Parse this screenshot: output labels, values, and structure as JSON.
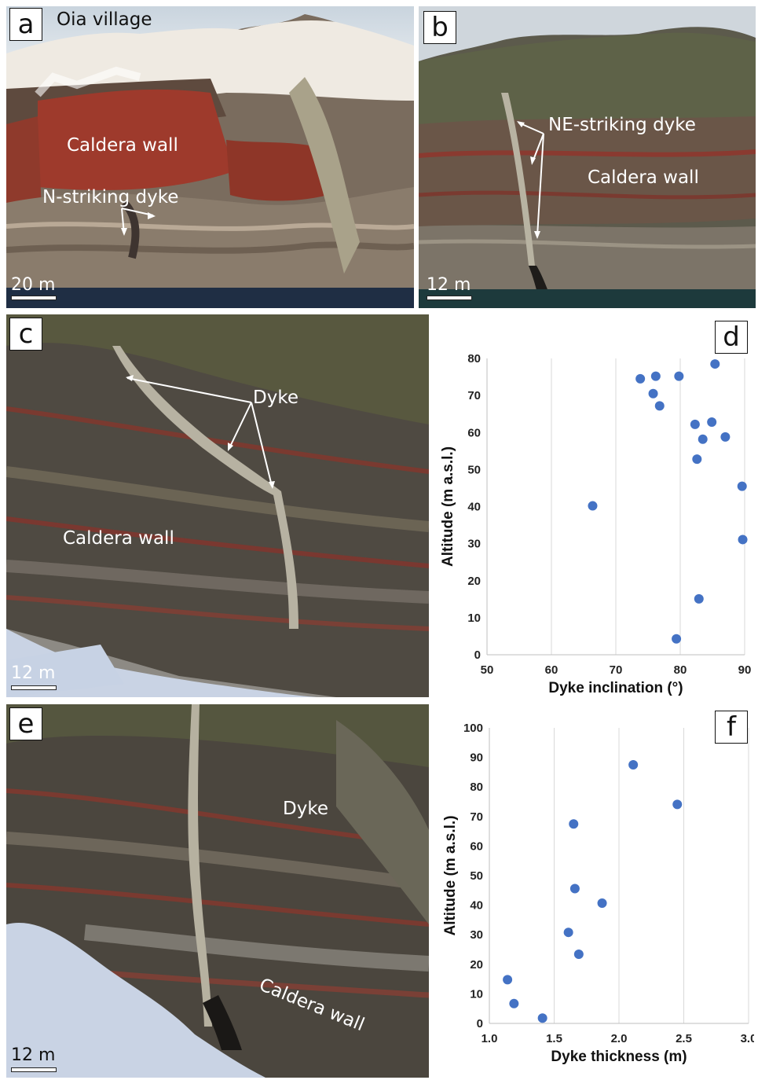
{
  "panels": {
    "a": {
      "letter": "a",
      "labels": {
        "village": "Oia village",
        "wall": "Caldera wall",
        "dyke": "N-striking dyke"
      },
      "scale": "20 m"
    },
    "b": {
      "letter": "b",
      "labels": {
        "dyke": "NE-striking dyke",
        "wall": "Caldera wall"
      },
      "scale": "12 m"
    },
    "c": {
      "letter": "c",
      "labels": {
        "dyke": "Dyke",
        "wall": "Caldera wall"
      },
      "scale": "12 m"
    },
    "d": {
      "letter": "d"
    },
    "e": {
      "letter": "e",
      "labels": {
        "dyke": "Dyke",
        "wall": "Caldera wall"
      },
      "scale": "12 m"
    },
    "f": {
      "letter": "f"
    }
  },
  "colors": {
    "marker": "#4472c4",
    "grid": "#d9d9d9"
  },
  "chart_data": [
    {
      "panel": "d",
      "type": "scatter",
      "xlabel": "Dyke inclination (°)",
      "ylabel": "Altitude (m a.s.l.)",
      "xlim": [
        50,
        90
      ],
      "ylim": [
        0,
        80
      ],
      "xticks": [
        50,
        60,
        70,
        80,
        90
      ],
      "yticks": [
        0,
        10,
        20,
        30,
        40,
        50,
        60,
        70,
        80
      ],
      "grid": "vertical",
      "points": [
        {
          "x": 66.4,
          "y": 40.2
        },
        {
          "x": 73.8,
          "y": 74.5
        },
        {
          "x": 76.2,
          "y": 75.2
        },
        {
          "x": 75.8,
          "y": 70.5
        },
        {
          "x": 76.8,
          "y": 67.2
        },
        {
          "x": 79.8,
          "y": 75.2
        },
        {
          "x": 85.4,
          "y": 78.5
        },
        {
          "x": 82.3,
          "y": 62.2
        },
        {
          "x": 84.9,
          "y": 62.8
        },
        {
          "x": 83.5,
          "y": 58.2
        },
        {
          "x": 87.0,
          "y": 58.8
        },
        {
          "x": 82.6,
          "y": 52.8
        },
        {
          "x": 89.6,
          "y": 45.5
        },
        {
          "x": 89.7,
          "y": 31.1
        },
        {
          "x": 82.9,
          "y": 15.1
        },
        {
          "x": 79.4,
          "y": 4.3
        }
      ]
    },
    {
      "panel": "f",
      "type": "scatter",
      "xlabel": "Dyke thickness (m)",
      "ylabel": "Altitude (m a.s.l.)",
      "xlim": [
        1.0,
        3.0
      ],
      "ylim": [
        0,
        100
      ],
      "xticks": [
        "1.0",
        "1.5",
        "2.0",
        "2.5",
        "3.0"
      ],
      "yticks": [
        0,
        10,
        20,
        30,
        40,
        50,
        60,
        70,
        80,
        90,
        100
      ],
      "grid": "vertical",
      "points": [
        {
          "x": 1.14,
          "y": 14.8
        },
        {
          "x": 1.19,
          "y": 6.7
        },
        {
          "x": 1.41,
          "y": 1.8
        },
        {
          "x": 1.61,
          "y": 30.8
        },
        {
          "x": 1.69,
          "y": 23.4
        },
        {
          "x": 1.66,
          "y": 45.6
        },
        {
          "x": 1.65,
          "y": 67.5
        },
        {
          "x": 1.87,
          "y": 40.7
        },
        {
          "x": 2.11,
          "y": 87.5
        },
        {
          "x": 2.45,
          "y": 74.1
        }
      ]
    }
  ]
}
